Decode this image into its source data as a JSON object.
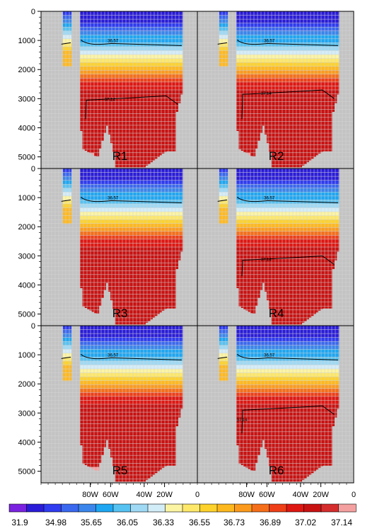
{
  "chart_data": {
    "type": "heatmap",
    "description": "Six depth-longitude ocean sections (R1-R6) colored by a filled-contour field with a discrete color bar; two labeled contour lines per panel.",
    "panels": [
      {
        "label": "R1",
        "contour_labels": [
          "36.57",
          "37.14"
        ],
        "deep_contour_depth": 3050
      },
      {
        "label": "R2",
        "contour_labels": [
          "36.57",
          "37.14"
        ],
        "deep_contour_depth": 2850
      },
      {
        "label": "R3",
        "contour_labels": [
          "36.57"
        ],
        "deep_contour_depth": null
      },
      {
        "label": "R4",
        "contour_labels": [
          "36.57",
          "37.14"
        ],
        "deep_contour_depth": 3150
      },
      {
        "label": "R5",
        "contour_labels": [
          "36.57"
        ],
        "deep_contour_depth": null
      },
      {
        "label": "R6",
        "contour_labels": [
          "36.57",
          "37.14"
        ],
        "deep_contour_depth": 2900
      }
    ],
    "y_axis": {
      "label": "",
      "ticks": [
        "0",
        "1000",
        "2000",
        "3000",
        "4000",
        "5000"
      ],
      "ylim": [
        0,
        5400
      ],
      "inverted": true
    },
    "x_axis": {
      "label": "",
      "ticks": [
        "80W",
        "60W",
        "40W",
        "20W"
      ],
      "edge_tick": "0"
    },
    "colorbar": {
      "labels": [
        "31.9",
        "34.98",
        "35.65",
        "36.05",
        "36.33",
        "36.55",
        "36.73",
        "36.89",
        "37.02",
        "37.14"
      ],
      "colors": [
        "#7a22e0",
        "#2a1cd8",
        "#2f3cf0",
        "#3a68ef",
        "#3b86ec",
        "#1ea6f2",
        "#56c2f2",
        "#9fd9f4",
        "#d3edf8",
        "#fbf4a3",
        "#fde86a",
        "#fdd22c",
        "#feb81f",
        "#fb9a1c",
        "#f56f1a",
        "#ee3f18",
        "#df1712",
        "#c81212",
        "#d52d2d",
        "#f4a0a0"
      ]
    },
    "land_color": "#c3c3c3",
    "grid": true
  }
}
